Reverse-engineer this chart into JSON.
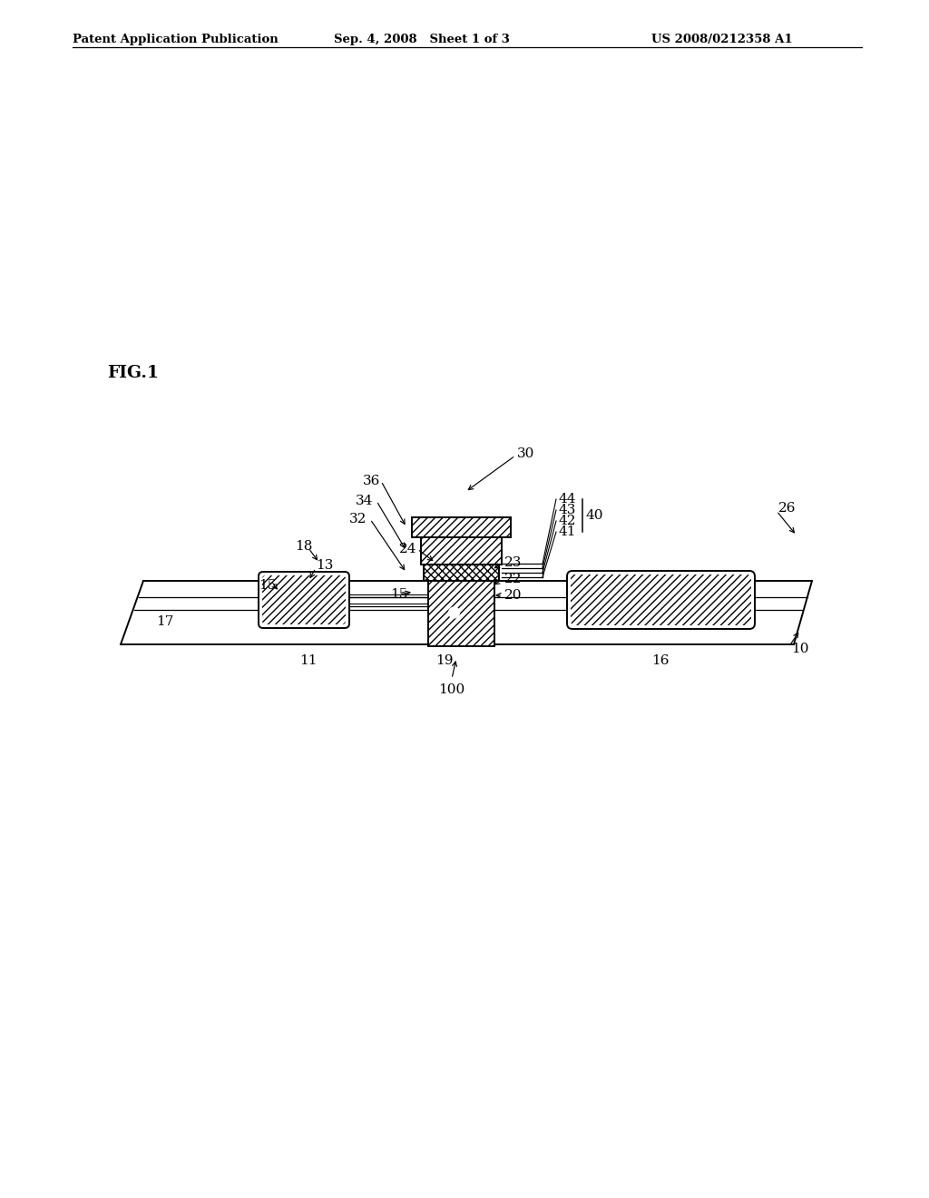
{
  "header_left": "Patent Application Publication",
  "header_mid": "Sep. 4, 2008   Sheet 1 of 3",
  "header_right": "US 2008/0212358 A1",
  "fig_label": "FIG.1",
  "bg_color": "#ffffff",
  "line_color": "#000000"
}
